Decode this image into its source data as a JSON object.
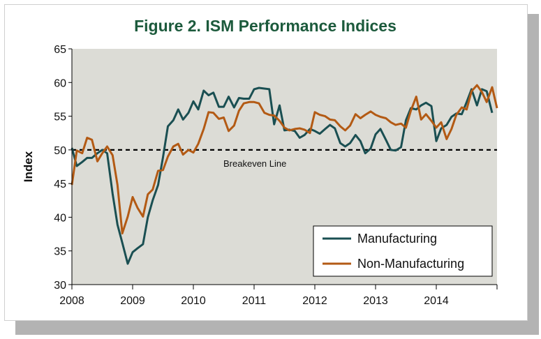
{
  "chart_data": {
    "type": "line",
    "title": "Figure 2. ISM Performance Indices",
    "xlabel": "",
    "ylabel": "Index",
    "xlim": [
      2008,
      2015
    ],
    "ylim": [
      30,
      65
    ],
    "yticks": [
      30,
      35,
      40,
      45,
      50,
      55,
      60,
      65
    ],
    "xticks": [
      2008,
      2009,
      2010,
      2011,
      2012,
      2013,
      2014
    ],
    "grid": false,
    "legend_position": "bottom-right",
    "annotation": {
      "text": "Breakeven Line",
      "y": 50
    },
    "series": [
      {
        "name": "Manufacturing",
        "color": "#1a4f52",
        "points": [
          [
            2008.0,
            50.3
          ],
          [
            2008.08,
            47.6
          ],
          [
            2008.17,
            48.2
          ],
          [
            2008.25,
            48.8
          ],
          [
            2008.33,
            48.8
          ],
          [
            2008.42,
            49.5
          ],
          [
            2008.5,
            50.0
          ],
          [
            2008.58,
            49.5
          ],
          [
            2008.67,
            43.5
          ],
          [
            2008.75,
            38.9
          ],
          [
            2008.83,
            36.2
          ],
          [
            2008.92,
            33.1
          ],
          [
            2009.0,
            34.8
          ],
          [
            2009.08,
            35.4
          ],
          [
            2009.17,
            36.0
          ],
          [
            2009.25,
            40.0
          ],
          [
            2009.33,
            42.5
          ],
          [
            2009.42,
            44.8
          ],
          [
            2009.5,
            48.9
          ],
          [
            2009.58,
            53.5
          ],
          [
            2009.67,
            54.4
          ],
          [
            2009.75,
            56.0
          ],
          [
            2009.83,
            54.5
          ],
          [
            2009.92,
            55.5
          ],
          [
            2010.0,
            57.2
          ],
          [
            2010.08,
            56.0
          ],
          [
            2010.17,
            58.8
          ],
          [
            2010.25,
            58.1
          ],
          [
            2010.33,
            58.5
          ],
          [
            2010.42,
            56.4
          ],
          [
            2010.5,
            56.4
          ],
          [
            2010.58,
            57.9
          ],
          [
            2010.67,
            56.3
          ],
          [
            2010.75,
            57.7
          ],
          [
            2010.83,
            57.6
          ],
          [
            2010.92,
            57.6
          ],
          [
            2011.0,
            59.0
          ],
          [
            2011.08,
            59.2
          ],
          [
            2011.17,
            59.1
          ],
          [
            2011.25,
            59.0
          ],
          [
            2011.33,
            53.8
          ],
          [
            2011.42,
            56.6
          ],
          [
            2011.5,
            52.9
          ],
          [
            2011.58,
            53.0
          ],
          [
            2011.67,
            52.8
          ],
          [
            2011.75,
            51.8
          ],
          [
            2011.83,
            52.2
          ],
          [
            2011.92,
            53.1
          ],
          [
            2012.0,
            52.8
          ],
          [
            2012.08,
            52.4
          ],
          [
            2012.17,
            53.1
          ],
          [
            2012.25,
            53.7
          ],
          [
            2012.33,
            53.2
          ],
          [
            2012.42,
            51.0
          ],
          [
            2012.5,
            50.5
          ],
          [
            2012.58,
            51.0
          ],
          [
            2012.67,
            52.2
          ],
          [
            2012.75,
            51.3
          ],
          [
            2012.83,
            49.5
          ],
          [
            2012.92,
            50.2
          ],
          [
            2013.0,
            52.3
          ],
          [
            2013.08,
            53.1
          ],
          [
            2013.17,
            51.5
          ],
          [
            2013.25,
            50.0
          ],
          [
            2013.33,
            49.9
          ],
          [
            2013.42,
            50.4
          ],
          [
            2013.5,
            54.4
          ],
          [
            2013.58,
            56.2
          ],
          [
            2013.67,
            56.0
          ],
          [
            2013.75,
            56.6
          ],
          [
            2013.83,
            57.0
          ],
          [
            2013.92,
            56.5
          ],
          [
            2014.0,
            51.3
          ],
          [
            2014.08,
            53.2
          ],
          [
            2014.17,
            53.7
          ],
          [
            2014.25,
            54.9
          ],
          [
            2014.33,
            55.4
          ],
          [
            2014.42,
            55.3
          ],
          [
            2014.5,
            57.1
          ],
          [
            2014.58,
            59.0
          ],
          [
            2014.67,
            56.6
          ],
          [
            2014.75,
            59.0
          ],
          [
            2014.83,
            58.7
          ],
          [
            2014.92,
            55.5
          ]
        ]
      },
      {
        "name": "Non-Manufacturing",
        "color": "#b35a14",
        "points": [
          [
            2008.0,
            44.8
          ],
          [
            2008.08,
            49.9
          ],
          [
            2008.17,
            49.5
          ],
          [
            2008.25,
            51.8
          ],
          [
            2008.33,
            51.5
          ],
          [
            2008.42,
            48.3
          ],
          [
            2008.5,
            49.5
          ],
          [
            2008.58,
            50.5
          ],
          [
            2008.67,
            49.2
          ],
          [
            2008.75,
            44.8
          ],
          [
            2008.83,
            37.6
          ],
          [
            2008.92,
            40.1
          ],
          [
            2009.0,
            43.0
          ],
          [
            2009.08,
            41.4
          ],
          [
            2009.17,
            40.1
          ],
          [
            2009.25,
            43.4
          ],
          [
            2009.33,
            44.1
          ],
          [
            2009.42,
            46.9
          ],
          [
            2009.5,
            47.0
          ],
          [
            2009.58,
            49.0
          ],
          [
            2009.67,
            50.5
          ],
          [
            2009.75,
            50.9
          ],
          [
            2009.83,
            49.3
          ],
          [
            2009.92,
            50.0
          ],
          [
            2010.0,
            49.6
          ],
          [
            2010.08,
            50.9
          ],
          [
            2010.17,
            53.1
          ],
          [
            2010.25,
            55.6
          ],
          [
            2010.33,
            55.5
          ],
          [
            2010.42,
            54.6
          ],
          [
            2010.5,
            54.8
          ],
          [
            2010.58,
            52.8
          ],
          [
            2010.67,
            53.6
          ],
          [
            2010.75,
            55.8
          ],
          [
            2010.83,
            56.9
          ],
          [
            2010.92,
            57.1
          ],
          [
            2011.0,
            57.1
          ],
          [
            2011.08,
            56.9
          ],
          [
            2011.17,
            55.5
          ],
          [
            2011.25,
            55.2
          ],
          [
            2011.33,
            55.1
          ],
          [
            2011.42,
            54.3
          ],
          [
            2011.5,
            53.3
          ],
          [
            2011.58,
            52.9
          ],
          [
            2011.67,
            53.1
          ],
          [
            2011.75,
            53.2
          ],
          [
            2011.83,
            53.0
          ],
          [
            2011.92,
            52.5
          ],
          [
            2012.0,
            55.6
          ],
          [
            2012.08,
            55.2
          ],
          [
            2012.17,
            55.0
          ],
          [
            2012.25,
            54.5
          ],
          [
            2012.33,
            54.4
          ],
          [
            2012.42,
            53.5
          ],
          [
            2012.5,
            52.9
          ],
          [
            2012.58,
            53.6
          ],
          [
            2012.67,
            55.3
          ],
          [
            2012.75,
            54.7
          ],
          [
            2012.83,
            55.2
          ],
          [
            2012.92,
            55.7
          ],
          [
            2013.0,
            55.2
          ],
          [
            2013.08,
            54.9
          ],
          [
            2013.17,
            54.7
          ],
          [
            2013.25,
            54.1
          ],
          [
            2013.33,
            53.7
          ],
          [
            2013.42,
            53.9
          ],
          [
            2013.5,
            53.3
          ],
          [
            2013.58,
            55.8
          ],
          [
            2013.67,
            57.9
          ],
          [
            2013.75,
            54.5
          ],
          [
            2013.83,
            55.3
          ],
          [
            2013.92,
            54.3
          ],
          [
            2014.0,
            53.3
          ],
          [
            2014.08,
            54.1
          ],
          [
            2014.17,
            51.6
          ],
          [
            2014.25,
            53.1
          ],
          [
            2014.33,
            55.2
          ],
          [
            2014.42,
            56.3
          ],
          [
            2014.5,
            56.0
          ],
          [
            2014.58,
            58.7
          ],
          [
            2014.67,
            59.6
          ],
          [
            2014.75,
            58.6
          ],
          [
            2014.83,
            57.1
          ],
          [
            2014.92,
            59.3
          ],
          [
            2015.0,
            56.2
          ]
        ]
      }
    ]
  }
}
